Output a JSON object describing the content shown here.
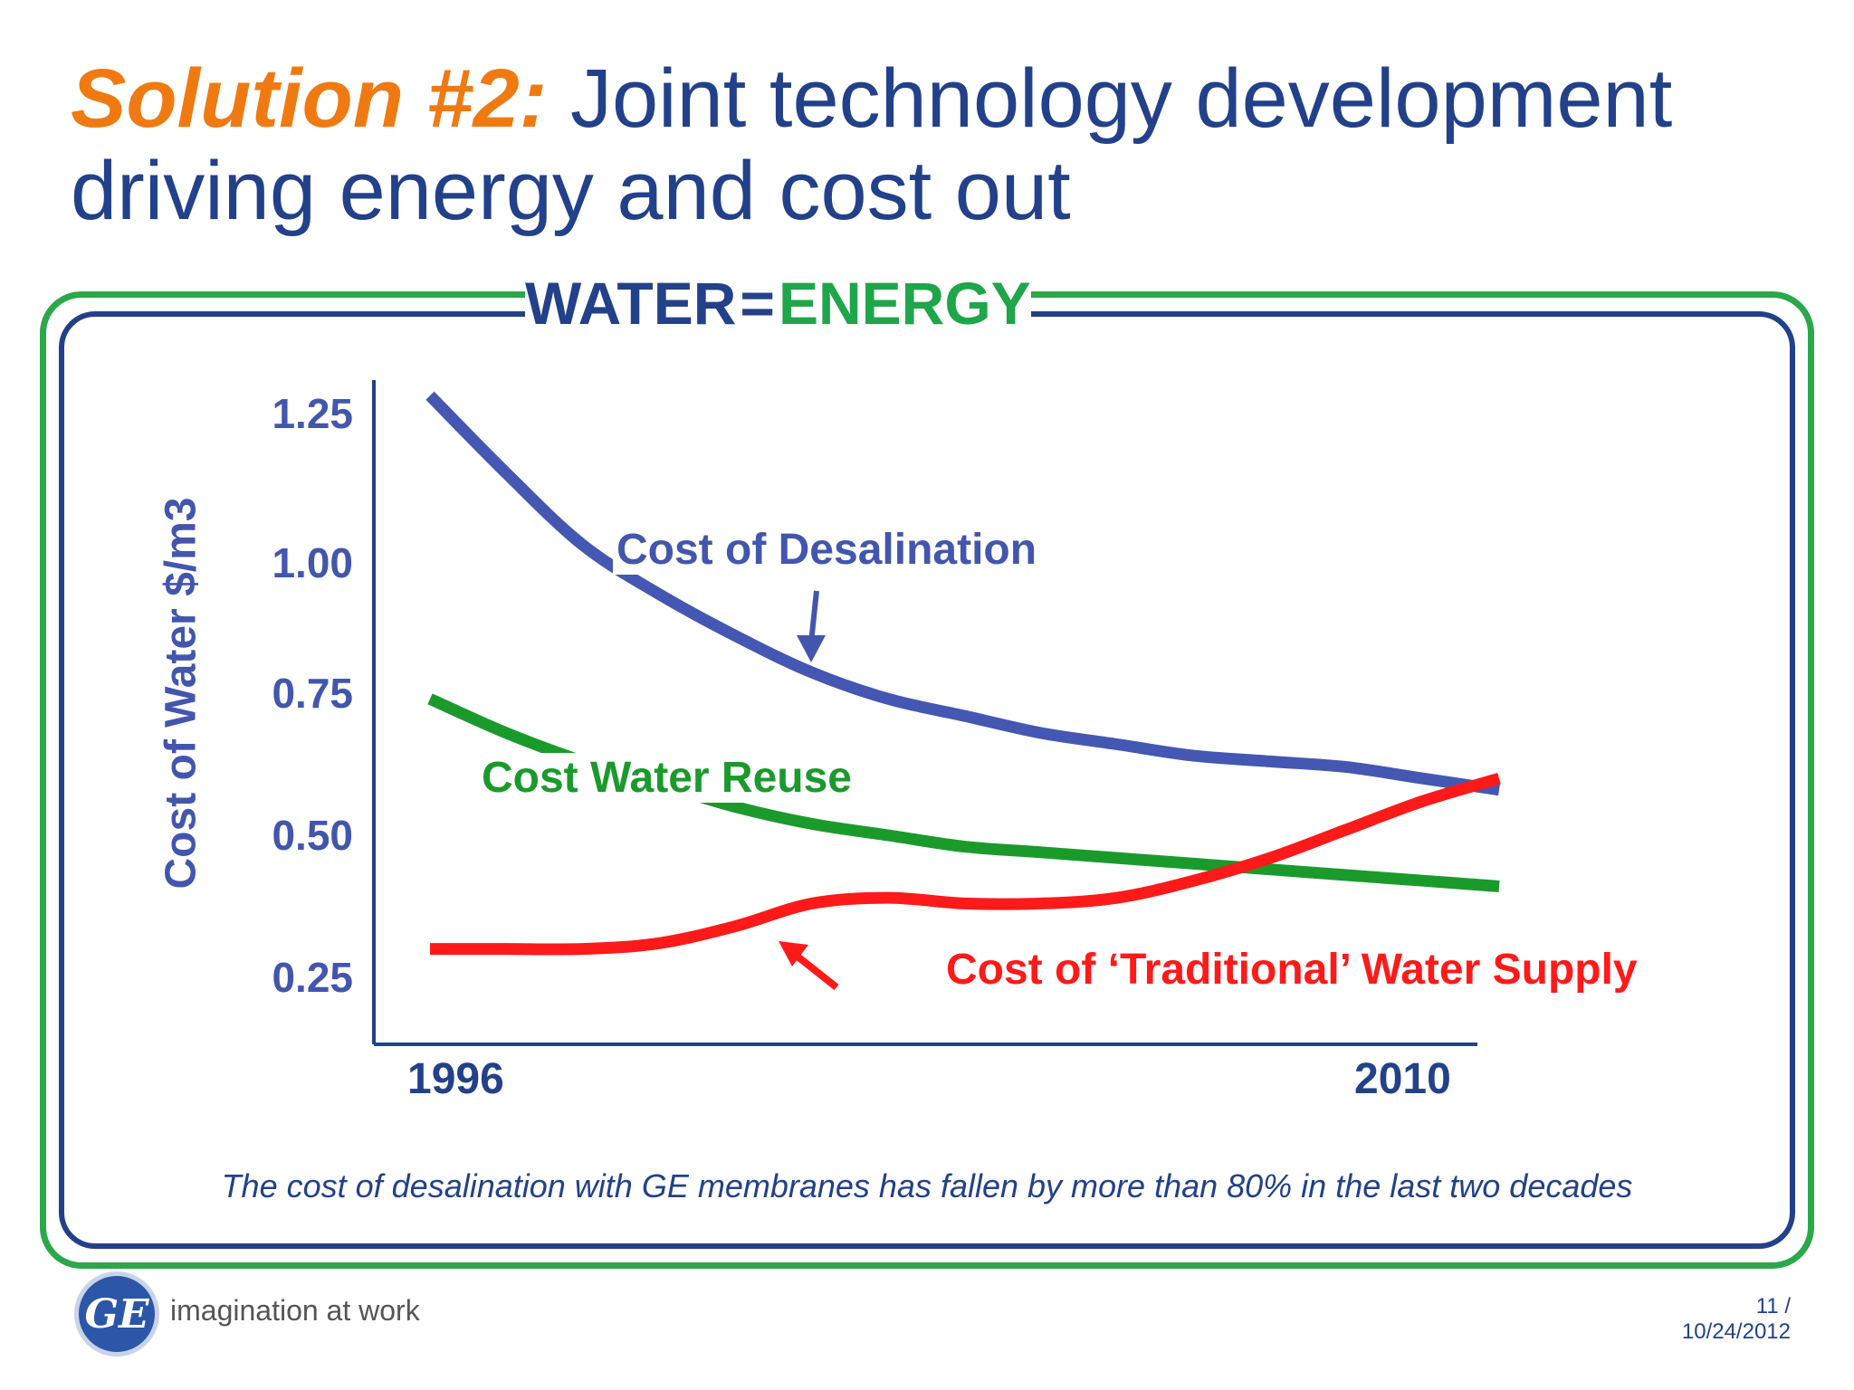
{
  "slide": {
    "title_prefix": "Solution #2:",
    "title_line1": "Joint technology development",
    "title_line2": "driving energy and cost out",
    "banner_water": "WATER",
    "banner_eq": "=",
    "banner_energy": "ENERGY",
    "footnote": "The cost of desalination with GE membranes has fallen by more than 80% in the last two decades",
    "logo_text": "GE",
    "tagline": "imagination at work",
    "page_number": "11 /",
    "date": "10/24/2012"
  },
  "chart_data": {
    "type": "line",
    "title": "",
    "ylabel": "Cost of Water $/m3",
    "xlabel": "",
    "x_tick_labels": [
      "1996",
      "2010"
    ],
    "y_ticks": [
      {
        "value": 1.25,
        "label": "1.25"
      },
      {
        "value": 1.0,
        "label": "1.00"
      },
      {
        "value": 0.75,
        "label": "0.75"
      },
      {
        "value": 0.5,
        "label": "0.50"
      },
      {
        "value": 0.25,
        "label": "0.25"
      }
    ],
    "ylim": [
      0.2,
      1.3
    ],
    "xlim": [
      1995,
      2011
    ],
    "series": [
      {
        "name": "Cost of Desalination",
        "color": "#4457b2",
        "x": [
          1996,
          1997,
          1998,
          1999,
          2000,
          2001,
          2002,
          2003,
          2004,
          2005,
          2006,
          2007,
          2008,
          2009,
          2010
        ],
        "y": [
          1.28,
          1.15,
          1.03,
          0.94,
          0.86,
          0.79,
          0.74,
          0.71,
          0.68,
          0.66,
          0.64,
          0.63,
          0.62,
          0.6,
          0.58
        ]
      },
      {
        "name": "Cost Water Reuse",
        "color": "#1b9a2c",
        "x": [
          1996,
          1997,
          1998,
          1999,
          2000,
          2001,
          2002,
          2003,
          2004,
          2005,
          2006,
          2007,
          2008,
          2009,
          2010
        ],
        "y": [
          0.74,
          0.68,
          0.63,
          0.59,
          0.55,
          0.52,
          0.5,
          0.48,
          0.47,
          0.46,
          0.45,
          0.44,
          0.43,
          0.42,
          0.41
        ]
      },
      {
        "name": "Cost of ‘Traditional’ Water Supply",
        "color": "#ff1a1a",
        "x": [
          1996,
          1997,
          1998,
          1999,
          2000,
          2001,
          2002,
          2003,
          2004,
          2005,
          2006,
          2007,
          2008,
          2009,
          2010
        ],
        "y": [
          0.3,
          0.3,
          0.3,
          0.31,
          0.34,
          0.38,
          0.39,
          0.38,
          0.38,
          0.39,
          0.42,
          0.46,
          0.51,
          0.56,
          0.6
        ]
      }
    ],
    "annotations": [
      {
        "text": "Cost of Desalination",
        "color": "#4356ad"
      },
      {
        "text": "Cost Water Reuse",
        "color": "#1b9a2c"
      },
      {
        "text": "Cost of ‘Traditional’ Water Supply",
        "color": "#ff1a1a"
      }
    ]
  }
}
